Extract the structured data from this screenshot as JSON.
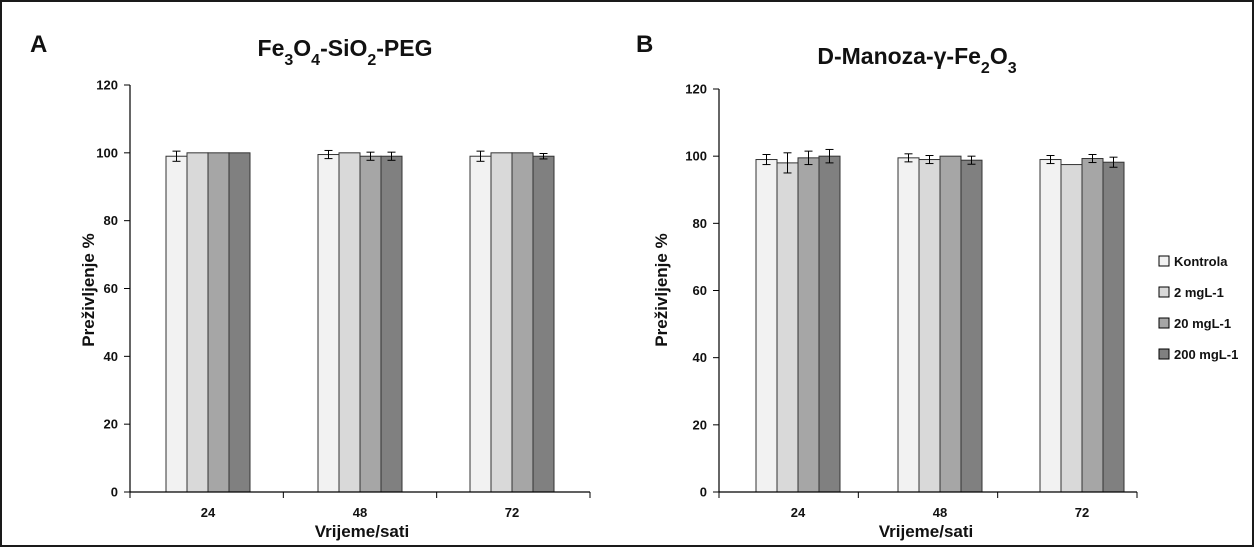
{
  "chart_data": [
    {
      "type": "bar",
      "panel_label": "A",
      "title": "Fe3O4-SiO2-PEG",
      "title_parts": [
        {
          "t": "Fe"
        },
        {
          "t": "3",
          "sub": true
        },
        {
          "t": "O"
        },
        {
          "t": "4",
          "sub": true
        },
        {
          "t": "-SiO"
        },
        {
          "t": "2",
          "sub": true
        },
        {
          "t": "-PEG"
        }
      ],
      "xlabel": "Vrijeme/sati",
      "ylabel": "Preživljenje %",
      "categories": [
        "24",
        "48",
        "72"
      ],
      "ylim": [
        0,
        120
      ],
      "yticks": [
        0,
        20,
        40,
        60,
        80,
        100,
        120
      ],
      "grid": false,
      "series": [
        {
          "name": "Kontrola",
          "values": [
            99,
            99.5,
            99
          ],
          "errors": [
            1.5,
            1.2,
            1.5
          ]
        },
        {
          "name": "2 mgL-1",
          "values": [
            100,
            100,
            100
          ],
          "errors": [
            0,
            0,
            0
          ]
        },
        {
          "name": "20 mgL-1",
          "values": [
            100,
            99,
            100
          ],
          "errors": [
            0,
            1.2,
            0
          ]
        },
        {
          "name": "200 mgL-1",
          "values": [
            100,
            99,
            99
          ],
          "errors": [
            0,
            1.2,
            0.8
          ]
        }
      ]
    },
    {
      "type": "bar",
      "panel_label": "B",
      "title": "D-Manoza-γ-Fe2O3",
      "title_parts": [
        {
          "t": "D-Manoza-γ-Fe"
        },
        {
          "t": "2",
          "sub": true
        },
        {
          "t": "O"
        },
        {
          "t": "3",
          "sub": true
        }
      ],
      "xlabel": "Vrijeme/sati",
      "ylabel": "Preživljenje %",
      "categories": [
        "24",
        "48",
        "72"
      ],
      "ylim": [
        0,
        120
      ],
      "yticks": [
        0,
        20,
        40,
        60,
        80,
        100,
        120
      ],
      "grid": false,
      "legend_position": "right",
      "series": [
        {
          "name": "Kontrola",
          "values": [
            99,
            99.5,
            99
          ],
          "errors": [
            1.5,
            1.2,
            1.2
          ]
        },
        {
          "name": "2 mgL-1",
          "values": [
            98,
            99,
            97.5
          ],
          "errors": [
            3,
            1.2,
            0
          ]
        },
        {
          "name": "20 mgL-1",
          "values": [
            99.5,
            100,
            99.3
          ],
          "errors": [
            2,
            0,
            1.2
          ]
        },
        {
          "name": "200 mgL-1",
          "values": [
            100,
            98.8,
            98.2
          ],
          "errors": [
            2,
            1.2,
            1.5
          ]
        }
      ]
    }
  ],
  "colors": {
    "series": [
      "#f2f2f2",
      "#d9d9d9",
      "#a6a6a6",
      "#808080"
    ],
    "bar_stroke": "#333333",
    "axis": "#000000"
  }
}
